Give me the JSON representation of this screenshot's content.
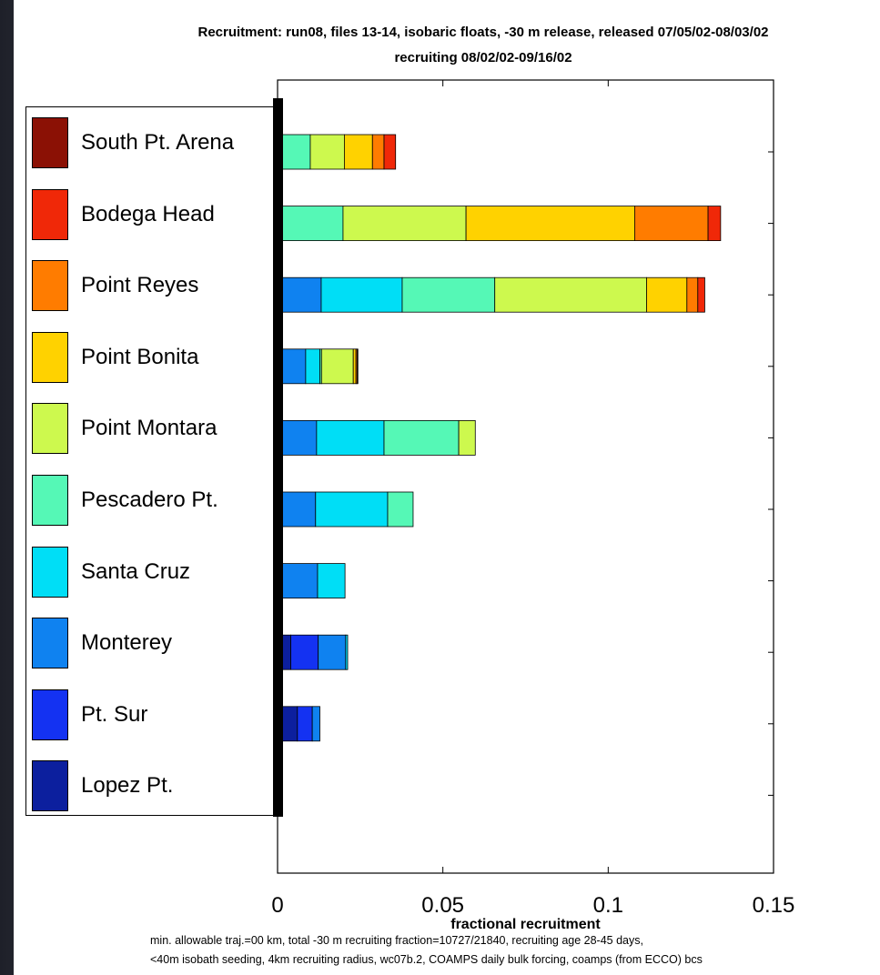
{
  "title_line1": "Recruitment: run08, files 13-14, isobaric floats, -30 m release, released 07/05/02-08/03/02",
  "title_line2": "recruiting 08/02/02-09/16/02",
  "caption_line1": "min. allowable traj.=00 km, total -30 m recruiting fraction=10727/21840, recruiting age 28-45 days,",
  "caption_line2": "<40m isobath seeding, 4km recruiting radius, wc07b.2, COAMPS daily bulk forcing, coamps (from ECCO) bcs",
  "chart_data": {
    "type": "bar",
    "orientation": "horizontal",
    "stacked": true,
    "xlabel": "fractional recruitment",
    "xlim": [
      0,
      0.15
    ],
    "xticks": [
      0,
      0.05,
      0.1,
      0.15
    ],
    "xtick_labels": [
      "0",
      "0.05",
      "0.1",
      "0.15"
    ],
    "categories": [
      "South Pt. Arena",
      "Bodega Head",
      "Point Reyes",
      "Point Bonita",
      "Point Montara",
      "Pescadero Pt.",
      "Santa Cruz",
      "Monterey",
      "Pt. Sur",
      "Lopez Pt."
    ],
    "legend_position": "left",
    "series": [
      {
        "name": "Lopez Pt.",
        "color": "#0c1f9e",
        "values": [
          0,
          0,
          0.0002,
          0.0002,
          0,
          0,
          0.0002,
          0.004,
          0.006,
          0
        ]
      },
      {
        "name": "Pt. Sur",
        "color": "#1432f2",
        "values": [
          0,
          0,
          0.0009,
          0.001,
          0.0003,
          0.0003,
          0.0012,
          0.0083,
          0.0045,
          0
        ]
      },
      {
        "name": "Monterey",
        "color": "#0f82f0",
        "values": [
          0,
          0,
          0.0121,
          0.0073,
          0.0115,
          0.0112,
          0.0107,
          0.0083,
          0.0023,
          0
        ]
      },
      {
        "name": "Santa Cruz",
        "color": "#00def6",
        "values": [
          0,
          0.0015,
          0.0245,
          0.0043,
          0.0204,
          0.0218,
          0.0083,
          0.0006,
          0,
          0
        ]
      },
      {
        "name": "Pescadero Pt.",
        "color": "#55f8b6",
        "values": [
          0.0099,
          0.0183,
          0.028,
          0.0005,
          0.0226,
          0.0077,
          0,
          0,
          0,
          0
        ]
      },
      {
        "name": "Point Montara",
        "color": "#cdf94e",
        "values": [
          0.0103,
          0.0372,
          0.0459,
          0.0096,
          0.005,
          0,
          0,
          0,
          0,
          0
        ]
      },
      {
        "name": "Point Bonita",
        "color": "#ffd200",
        "values": [
          0.0085,
          0.051,
          0.0122,
          0.0008,
          0,
          0,
          0,
          0,
          0,
          0
        ]
      },
      {
        "name": "Point Reyes",
        "color": "#ff7c00",
        "values": [
          0.0035,
          0.0222,
          0.0033,
          0.0004,
          0,
          0,
          0,
          0,
          0,
          0
        ]
      },
      {
        "name": "Bodega Head",
        "color": "#f02808",
        "values": [
          0.0035,
          0.0038,
          0.0021,
          0.0002,
          0,
          0,
          0,
          0,
          0,
          0
        ]
      },
      {
        "name": "South Pt. Arena",
        "color": "#8b1105",
        "values": [
          0,
          0,
          0,
          0,
          0,
          0,
          0,
          0,
          0,
          0
        ]
      }
    ]
  }
}
